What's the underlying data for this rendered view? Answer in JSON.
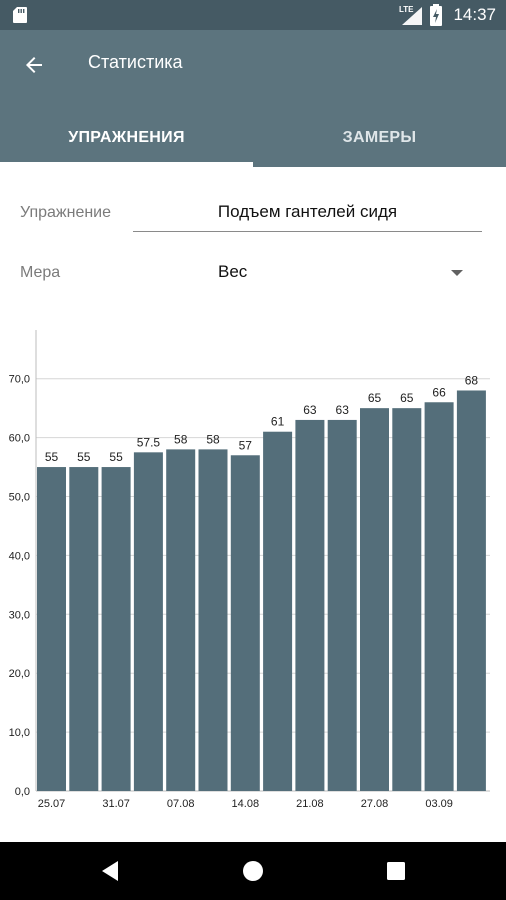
{
  "status_bar": {
    "time": "14:37",
    "network": "LTE",
    "icons": [
      "sd-card-icon",
      "lte-signal-icon",
      "battery-charging-icon"
    ]
  },
  "app_bar": {
    "title": "Статистика",
    "back_icon": "arrow-back-icon",
    "background": "#5c747e"
  },
  "tabs": [
    {
      "label": "УПРАЖНЕНИЯ",
      "active": true
    },
    {
      "label": "ЗАМЕРЫ",
      "active": false
    }
  ],
  "form": {
    "exercise_label": "Упражнение",
    "exercise_value": "Подъем гантелей сидя",
    "measure_label": "Мера",
    "measure_value": "Вес"
  },
  "chart_data": {
    "type": "bar",
    "categories": [
      "25.07",
      "",
      "31.07",
      "",
      "07.08",
      "",
      "14.08",
      "",
      "21.08",
      "",
      "27.08",
      "",
      "03.09",
      ""
    ],
    "values": [
      55,
      55,
      55,
      57.5,
      58,
      58,
      57,
      61,
      63,
      63,
      65,
      65,
      66,
      68
    ],
    "value_labels": [
      "55",
      "55",
      "55",
      "57.5",
      "58",
      "58",
      "57",
      "61",
      "63",
      "63",
      "65",
      "65",
      "66",
      "68"
    ],
    "y_ticks": [
      "0,0",
      "10,0",
      "20,0",
      "30,0",
      "40,0",
      "50,0",
      "60,0",
      "70,0"
    ],
    "ylim": [
      0,
      70
    ],
    "bar_color": "#546e7a",
    "grid": true
  },
  "nav_bar": {
    "icons": [
      "back-triangle-icon",
      "home-circle-icon",
      "recents-square-icon"
    ]
  }
}
